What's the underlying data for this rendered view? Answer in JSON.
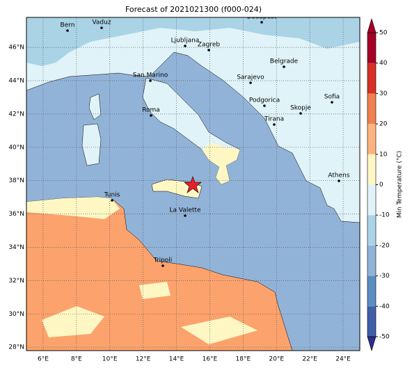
{
  "map": {
    "title": "Forecast of 2021021300 (f000-024)",
    "xlim": [
      5,
      25
    ],
    "ylim": [
      27.8,
      47.8
    ],
    "xticks": [
      {
        "value": 6,
        "label": "6°E"
      },
      {
        "value": 8,
        "label": "8°E"
      },
      {
        "value": 10,
        "label": "10°E"
      },
      {
        "value": 12,
        "label": "12°E"
      },
      {
        "value": 14,
        "label": "14°E"
      },
      {
        "value": 16,
        "label": "16°E"
      },
      {
        "value": 18,
        "label": "18°E"
      },
      {
        "value": 20,
        "label": "20°E"
      },
      {
        "value": 22,
        "label": "22°E"
      },
      {
        "value": 24,
        "label": "24°E"
      }
    ],
    "yticks": [
      {
        "value": 28,
        "label": "28°N"
      },
      {
        "value": 30,
        "label": "30°N"
      },
      {
        "value": 32,
        "label": "32°N"
      },
      {
        "value": 34,
        "label": "34°N"
      },
      {
        "value": 36,
        "label": "36°N"
      },
      {
        "value": 38,
        "label": "38°N"
      },
      {
        "value": 40,
        "label": "40°N"
      },
      {
        "value": 42,
        "label": "42°N"
      },
      {
        "value": 44,
        "label": "44°N"
      },
      {
        "value": 46,
        "label": "46°N"
      }
    ],
    "grid": true,
    "cities": [
      "Bern",
      "Vaduz",
      "Budapest",
      "Ljubljana",
      "Zagreb",
      "Belgrade",
      "San Marino",
      "Sarajevo",
      "Podgorica",
      "Skopje",
      "Sofia",
      "Roma",
      "Tirana",
      "Athens",
      "Tunis",
      "La Valette",
      "Tripoli"
    ],
    "colorbar": {
      "label": "Min Temperature (°C)",
      "lim": [
        -50,
        50
      ],
      "ticks": [
        -50,
        -40,
        -30,
        -20,
        -10,
        0,
        10,
        20,
        30,
        40,
        50
      ],
      "levels": [
        -50,
        -40,
        -30,
        -20,
        -10,
        0,
        10,
        20,
        30,
        40,
        50
      ],
      "colors": [
        "#2b2f8c",
        "#3f5fa8",
        "#5a8ec2",
        "#92b3d8",
        "#aad3e6",
        "#e0f3f8",
        "#fef7c4",
        "#fcb37e",
        "#f08050",
        "#d73027",
        "#a50026"
      ]
    }
  }
}
